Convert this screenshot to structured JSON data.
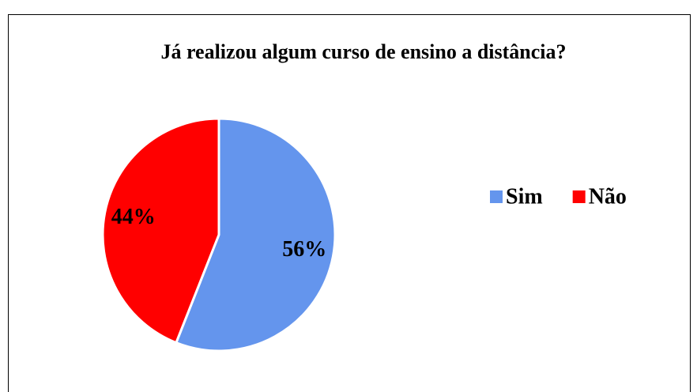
{
  "chart_data": {
    "type": "pie",
    "title": "Já realizou algum curso de ensino a distância?",
    "categories": [
      "Sim",
      "Não"
    ],
    "values": [
      56,
      44
    ],
    "value_labels": [
      "56%",
      "44%"
    ],
    "colors": [
      "#6495ED",
      "#FF0000"
    ],
    "legend": "right"
  }
}
